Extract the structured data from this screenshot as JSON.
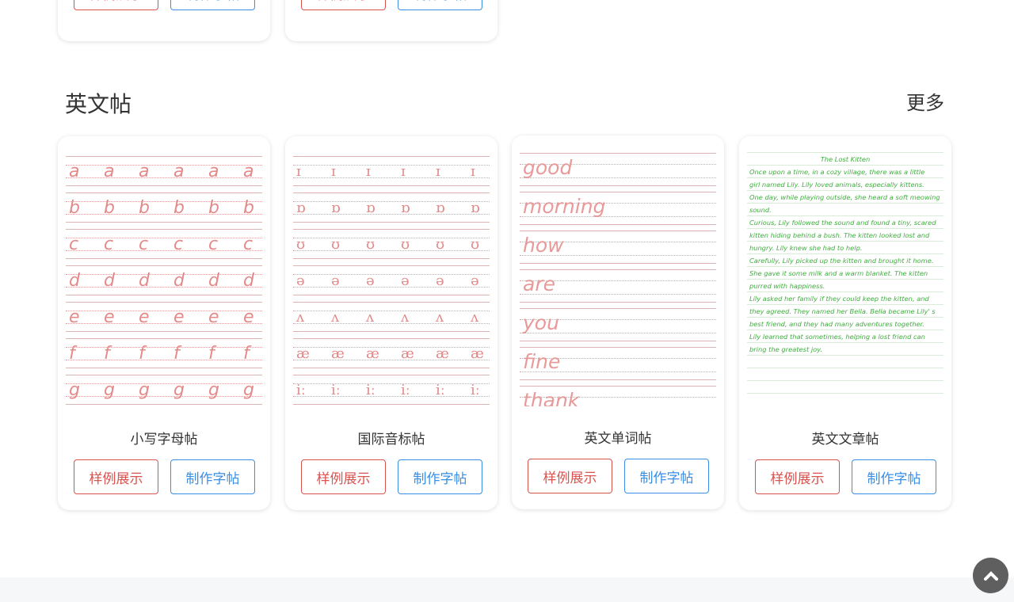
{
  "prev_cards": [
    {
      "sample_label": "样例展示",
      "make_label": "制作字帖"
    },
    {
      "sample_label": "样例展示",
      "make_label": "制作字帖"
    }
  ],
  "section": {
    "title": "英文帖",
    "more": "更多"
  },
  "cards": [
    {
      "title": "小写字母帖",
      "sample_label": "样例展示",
      "make_label": "制作字帖",
      "sheet": {
        "type": "letters",
        "rows": [
          "a",
          "b",
          "c",
          "d",
          "e",
          "f",
          "g"
        ]
      }
    },
    {
      "title": "国际音标帖",
      "sample_label": "样例展示",
      "make_label": "制作字帖",
      "sheet": {
        "type": "ipa",
        "rows": [
          "ɪ",
          "ɒ",
          "ʊ",
          "ə",
          "ʌ",
          "æ",
          "iː"
        ]
      }
    },
    {
      "title": "英文单词帖",
      "sample_label": "样例展示",
      "make_label": "制作字帖",
      "sheet": {
        "type": "words",
        "rows": [
          "good",
          "morning",
          "how",
          "are",
          "you",
          "fine",
          "thank"
        ]
      }
    },
    {
      "title": "英文文章帖",
      "sample_label": "样例展示",
      "make_label": "制作字帖",
      "sheet": {
        "type": "article",
        "heading": "The Lost Kitten",
        "rows": [
          "Once upon a time,  in a cozy village,  there was a little",
          "girl named Lily.  Lily loved animals,  especially kittens.",
          "One day,  while playing outside,  she heard a soft meowing",
          "sound.",
          "Curious,  Lily followed the sound and found a tiny,  scared",
          "kitten hiding behind a bush.  The kitten looked lost and",
          "hungry.  Lily knew she had to help.",
          "Carefully,  Lily picked up the kitten and brought it home.",
          "She gave it some milk and a warm blanket.  The kitten",
          "purred with happiness.",
          "Lily asked her family if they could keep the kitten,  and",
          "they agreed.  They named her Bella.  Bella became Lily' s",
          "best friend,  and they had many adventures together.",
          "Lily learned that sometimes,  helping a lost friend can",
          "bring the greatest joy."
        ]
      }
    }
  ],
  "colors": {
    "sample": "#d9534f",
    "make": "#3a8ee6",
    "letters": "#e58a8a",
    "article": "#3fae3f"
  },
  "icons": {
    "back_to_top": "chevron-up-icon"
  }
}
